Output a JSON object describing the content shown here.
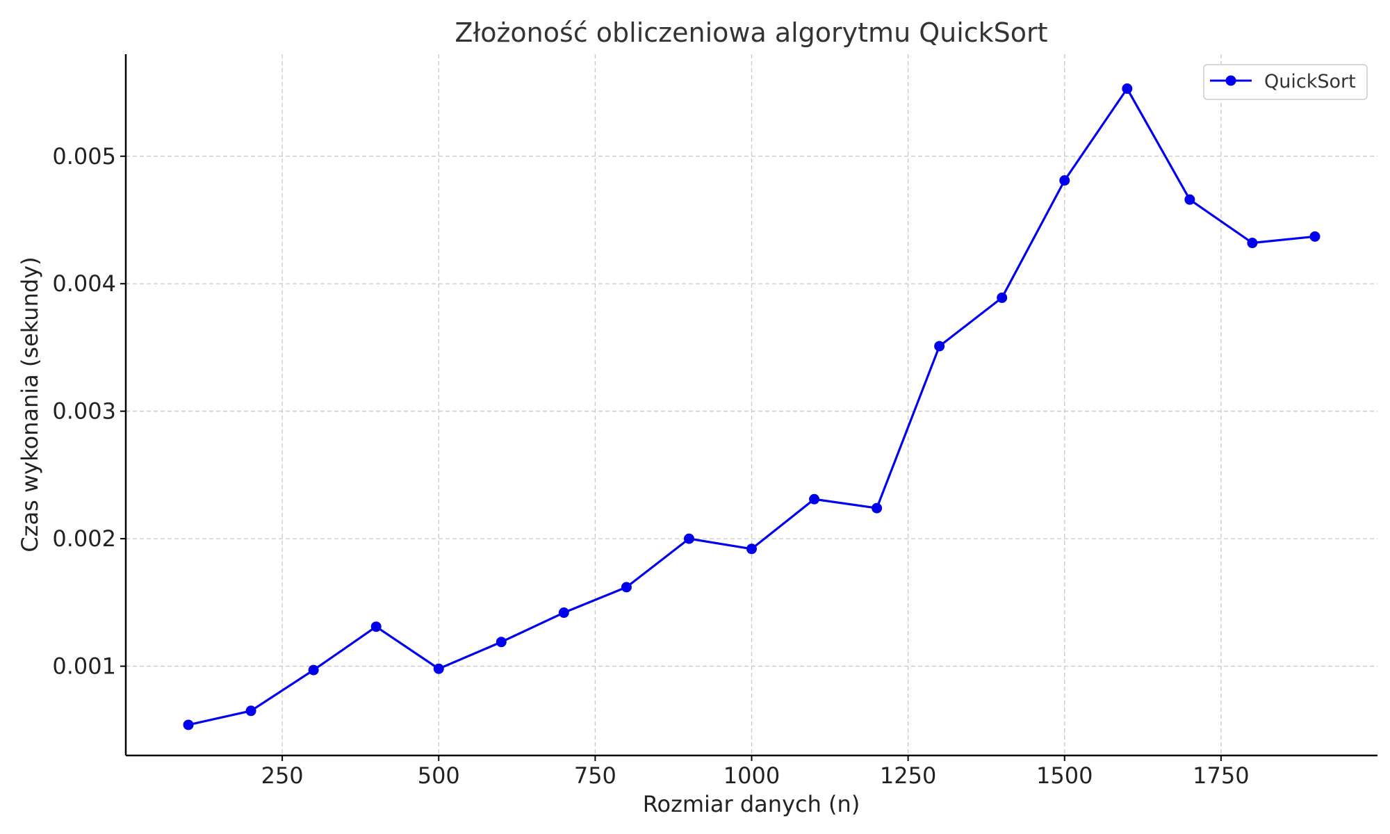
{
  "chart_data": {
    "type": "line",
    "title": "Złożoność obliczeniowa algorytmu QuickSort",
    "xlabel": "Rozmiar danych (n)",
    "ylabel": "Czas wykonania (sekundy)",
    "xlim": [
      0,
      2000
    ],
    "ylim": [
      0.0003,
      0.0058
    ],
    "xticks": [
      250,
      500,
      750,
      1000,
      1250,
      1500,
      1750
    ],
    "yticks": [
      0.001,
      0.002,
      0.003,
      0.004,
      0.005
    ],
    "xtick_labels": [
      "250",
      "500",
      "750",
      "1000",
      "1250",
      "1500",
      "1750"
    ],
    "ytick_labels": [
      "0.001",
      "0.002",
      "0.003",
      "0.004",
      "0.005"
    ],
    "grid": true,
    "legend_position": "top-right",
    "series": [
      {
        "name": "QuickSort",
        "color": "#0000ee",
        "marker": "circle",
        "x": [
          100,
          200,
          300,
          400,
          500,
          600,
          700,
          800,
          900,
          1000,
          1100,
          1200,
          1300,
          1400,
          1500,
          1600,
          1700,
          1800,
          1900
        ],
        "y": [
          0.00054,
          0.00065,
          0.00097,
          0.00131,
          0.00098,
          0.00119,
          0.00142,
          0.00162,
          0.002,
          0.00192,
          0.00231,
          0.00224,
          0.00351,
          0.00389,
          0.00481,
          0.00553,
          0.00466,
          0.00432,
          0.00437
        ]
      }
    ]
  }
}
